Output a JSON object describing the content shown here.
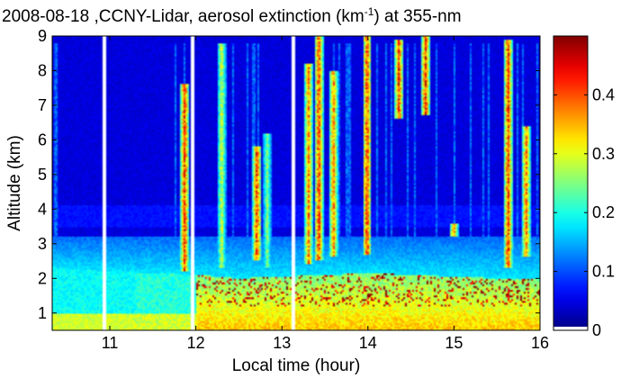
{
  "chart_data": {
    "type": "heatmap",
    "title_prefix": "2008-08-18 ,CCNY-Lidar, aerosol extinction (km",
    "title_superscript": "-1",
    "title_suffix": ") at 355-nm",
    "xlabel": "Local time (hour)",
    "ylabel": "Altitude (km)",
    "xlim": [
      10.33,
      16.0
    ],
    "ylim": [
      0.5,
      9.0
    ],
    "x_ticks": [
      "11",
      "12",
      "13",
      "14",
      "15",
      "16"
    ],
    "x_tick_values": [
      11,
      12,
      13,
      14,
      15,
      16
    ],
    "y_ticks": [
      "1",
      "2",
      "3",
      "4",
      "5",
      "6",
      "7",
      "8",
      "9"
    ],
    "y_tick_values": [
      1,
      2,
      3,
      4,
      5,
      6,
      7,
      8,
      9
    ],
    "colorbar": {
      "range": [
        0,
        0.5
      ],
      "ticks": [
        "0",
        "0.1",
        "0.2",
        "0.3",
        "0.4"
      ],
      "tick_values": [
        0,
        0.1,
        0.2,
        0.3,
        0.4
      ],
      "colormap": "jet"
    },
    "data_gaps_hour": [
      10.93,
      11.97,
      13.13
    ],
    "boundary_layer_top_km": {
      "x": [
        10.33,
        11.0,
        11.5,
        12.0,
        12.5,
        13.0,
        13.5,
        14.0,
        14.5,
        15.0,
        15.5,
        16.0
      ],
      "y": [
        2.3,
        2.2,
        2.15,
        2.1,
        2.0,
        2.05,
        2.1,
        2.15,
        2.1,
        2.05,
        2.0,
        2.0
      ]
    },
    "residual_layer_top_km": 3.2,
    "plumes": [
      {
        "time": 11.87,
        "base_km": 2.2,
        "top_km": 7.6,
        "peak": 0.5
      },
      {
        "time": 12.3,
        "base_km": 2.3,
        "top_km": 8.8,
        "peak": 0.35
      },
      {
        "time": 12.71,
        "base_km": 2.5,
        "top_km": 5.8,
        "peak": 0.5
      },
      {
        "time": 12.83,
        "base_km": 2.3,
        "top_km": 6.2,
        "peak": 0.3
      },
      {
        "time": 13.31,
        "base_km": 2.4,
        "top_km": 8.2,
        "peak": 0.45
      },
      {
        "time": 13.43,
        "base_km": 2.5,
        "top_km": 9.0,
        "peak": 0.5
      },
      {
        "time": 13.6,
        "base_km": 2.6,
        "top_km": 8.0,
        "peak": 0.45
      },
      {
        "time": 13.99,
        "base_km": 2.7,
        "top_km": 9.0,
        "peak": 0.5
      },
      {
        "time": 14.36,
        "base_km": 6.6,
        "top_km": 8.9,
        "peak": 0.5
      },
      {
        "time": 14.67,
        "base_km": 6.7,
        "top_km": 9.0,
        "peak": 0.5
      },
      {
        "time": 15.0,
        "base_km": 3.2,
        "top_km": 3.6,
        "peak": 0.45
      },
      {
        "time": 15.63,
        "base_km": 2.3,
        "top_km": 8.9,
        "peak": 0.5
      },
      {
        "time": 15.84,
        "base_km": 2.6,
        "top_km": 6.4,
        "peak": 0.45
      }
    ]
  }
}
